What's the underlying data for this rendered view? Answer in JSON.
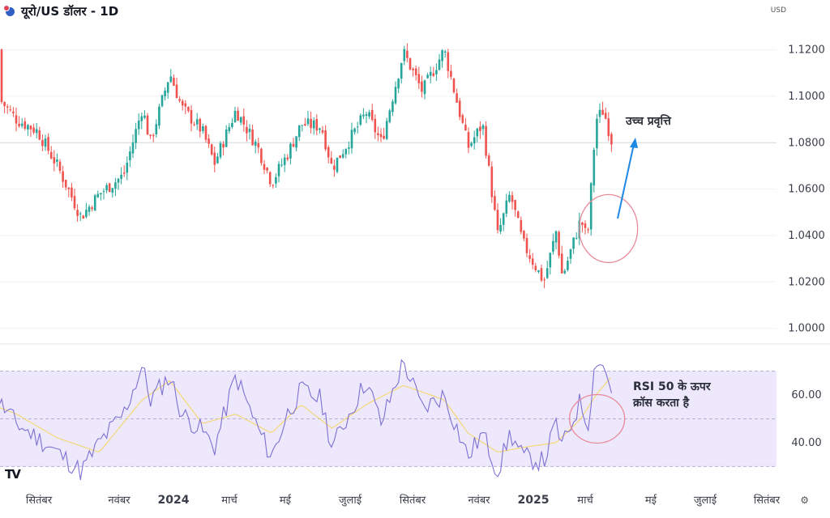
{
  "header": {
    "title": "यूरो/US डॉलर - 1D",
    "currency": "USD",
    "logo": "TV"
  },
  "icons": {
    "symbol": "currency-pair-icon",
    "settings": "settings-icon"
  },
  "colors": {
    "up": "#26a69a",
    "down": "#ef5350",
    "rsi": "#7e70d4",
    "rsi_ma": "#f5d76e",
    "rsi_band": "#ede8fb",
    "circle": "#e88a9a",
    "arrow": "#1e88e5"
  },
  "chart_data": [
    {
      "type": "candlestick",
      "title": "यूरो/US डॉलर - 1D",
      "ylim": [
        0.995,
        1.131
      ],
      "y_ticks": [
        "1.1200",
        "1.1000",
        "1.0800",
        "1.0600",
        "1.0400",
        "1.0200",
        "1.0000"
      ],
      "y_tick_values": [
        1.12,
        1.1,
        1.08,
        1.06,
        1.04,
        1.02,
        1.0
      ],
      "reference_line": 1.08,
      "x_labels": [
        "सितंबर",
        "नवंबर",
        "2024",
        "मार्च",
        "मई",
        "जुलाई",
        "सितंबर",
        "नवंबर",
        "2025",
        "मार्च",
        "मई",
        "जुलाई",
        "सितंबर"
      ],
      "x_labels_bold": [
        false,
        false,
        true,
        false,
        false,
        false,
        false,
        false,
        true,
        false,
        false,
        false,
        false
      ],
      "x_label_dates": [
        "2023-09-01",
        "2023-11-01",
        "2024-01-01",
        "2024-03-01",
        "2024-05-01",
        "2024-07-01",
        "2024-09-01",
        "2024-11-01",
        "2025-01-01",
        "2025-03-01",
        "2025-05-01",
        "2025-07-01",
        "2025-09-01"
      ],
      "close_path": [
        {
          "date": "2023-07-17",
          "close": 1.12
        },
        {
          "date": "2023-07-31",
          "close": 1.1
        },
        {
          "date": "2023-08-15",
          "close": 1.09
        },
        {
          "date": "2023-08-31",
          "close": 1.085
        },
        {
          "date": "2023-09-15",
          "close": 1.07
        },
        {
          "date": "2023-10-03",
          "close": 1.048
        },
        {
          "date": "2023-10-17",
          "close": 1.058
        },
        {
          "date": "2023-11-06",
          "close": 1.066
        },
        {
          "date": "2023-11-27",
          "close": 1.095
        },
        {
          "date": "2023-12-06",
          "close": 1.08
        },
        {
          "date": "2023-12-28",
          "close": 1.11
        },
        {
          "date": "2024-01-10",
          "close": 1.095
        },
        {
          "date": "2024-02-01",
          "close": 1.085
        },
        {
          "date": "2024-02-14",
          "close": 1.071
        },
        {
          "date": "2024-03-08",
          "close": 1.094
        },
        {
          "date": "2024-04-01",
          "close": 1.078
        },
        {
          "date": "2024-04-16",
          "close": 1.063
        },
        {
          "date": "2024-05-03",
          "close": 1.075
        },
        {
          "date": "2024-05-16",
          "close": 1.088
        },
        {
          "date": "2024-06-04",
          "close": 1.087
        },
        {
          "date": "2024-06-14",
          "close": 1.069
        },
        {
          "date": "2024-07-17",
          "close": 1.093
        },
        {
          "date": "2024-08-01",
          "close": 1.08
        },
        {
          "date": "2024-08-23",
          "close": 1.119
        },
        {
          "date": "2024-09-10",
          "close": 1.102
        },
        {
          "date": "2024-09-30",
          "close": 1.12
        },
        {
          "date": "2024-10-22",
          "close": 1.078
        },
        {
          "date": "2024-11-05",
          "close": 1.088
        },
        {
          "date": "2024-11-22",
          "close": 1.04
        },
        {
          "date": "2024-12-06",
          "close": 1.058
        },
        {
          "date": "2024-12-20",
          "close": 1.037
        },
        {
          "date": "2025-01-13",
          "close": 1.02
        },
        {
          "date": "2025-01-27",
          "close": 1.042
        },
        {
          "date": "2025-02-03",
          "close": 1.022
        },
        {
          "date": "2025-02-24",
          "close": 1.047
        },
        {
          "date": "2025-03-03",
          "close": 1.038
        },
        {
          "date": "2025-03-11",
          "close": 1.09
        },
        {
          "date": "2025-03-18",
          "close": 1.094
        },
        {
          "date": "2025-03-26",
          "close": 1.08
        }
      ],
      "annotations": [
        {
          "text": "उच्च प्रवृत्ति",
          "type": "arrow-up"
        },
        {
          "type": "circle",
          "date": "2025-03-03",
          "value": 1.043
        }
      ]
    },
    {
      "type": "line",
      "title": "RSI",
      "ylim": [
        22,
        79
      ],
      "y_ticks": [
        "60.00",
        "40.00"
      ],
      "y_tick_values": [
        60,
        40
      ],
      "band": [
        30,
        70
      ],
      "midline": 50,
      "series": [
        {
          "values": [
            {
              "date": "2023-07-17",
              "rsi": 75
            },
            {
              "date": "2023-07-31",
              "rsi": 58
            },
            {
              "date": "2023-08-15",
              "rsi": 48
            },
            {
              "date": "2023-08-31",
              "rsi": 42
            },
            {
              "date": "2023-09-15",
              "rsi": 36
            },
            {
              "date": "2023-10-03",
              "rsi": 28
            },
            {
              "date": "2023-10-17",
              "rsi": 40
            },
            {
              "date": "2023-11-06",
              "rsi": 52
            },
            {
              "date": "2023-11-27",
              "rsi": 72
            },
            {
              "date": "2023-12-06",
              "rsi": 58
            },
            {
              "date": "2023-12-28",
              "rsi": 68
            },
            {
              "date": "2024-01-10",
              "rsi": 52
            },
            {
              "date": "2024-02-01",
              "rsi": 45
            },
            {
              "date": "2024-02-14",
              "rsi": 38
            },
            {
              "date": "2024-03-08",
              "rsi": 68
            },
            {
              "date": "2024-04-01",
              "rsi": 46
            },
            {
              "date": "2024-04-16",
              "rsi": 34
            },
            {
              "date": "2024-05-03",
              "rsi": 52
            },
            {
              "date": "2024-05-16",
              "rsi": 62
            },
            {
              "date": "2024-06-04",
              "rsi": 58
            },
            {
              "date": "2024-06-14",
              "rsi": 38
            },
            {
              "date": "2024-07-17",
              "rsi": 66
            },
            {
              "date": "2024-08-01",
              "rsi": 48
            },
            {
              "date": "2024-08-23",
              "rsi": 74
            },
            {
              "date": "2024-09-10",
              "rsi": 54
            },
            {
              "date": "2024-09-30",
              "rsi": 60
            },
            {
              "date": "2024-10-22",
              "rsi": 34
            },
            {
              "date": "2024-11-05",
              "rsi": 44
            },
            {
              "date": "2024-11-22",
              "rsi": 28
            },
            {
              "date": "2024-12-06",
              "rsi": 44
            },
            {
              "date": "2024-12-20",
              "rsi": 34
            },
            {
              "date": "2025-01-13",
              "rsi": 32
            },
            {
              "date": "2025-01-27",
              "rsi": 48
            },
            {
              "date": "2025-02-03",
              "rsi": 38
            },
            {
              "date": "2025-02-24",
              "rsi": 58
            },
            {
              "date": "2025-03-03",
              "rsi": 46
            },
            {
              "date": "2025-03-11",
              "rsi": 76
            },
            {
              "date": "2025-03-18",
              "rsi": 72
            },
            {
              "date": "2025-03-26",
              "rsi": 62
            }
          ]
        },
        {
          "values": [
            {
              "date": "2023-07-17",
              "rsi": 58
            },
            {
              "date": "2023-08-15",
              "rsi": 52
            },
            {
              "date": "2023-09-15",
              "rsi": 42
            },
            {
              "date": "2023-10-17",
              "rsi": 36
            },
            {
              "date": "2023-11-27",
              "rsi": 58
            },
            {
              "date": "2023-12-28",
              "rsi": 66
            },
            {
              "date": "2024-02-01",
              "rsi": 48
            },
            {
              "date": "2024-03-08",
              "rsi": 52
            },
            {
              "date": "2024-04-16",
              "rsi": 44
            },
            {
              "date": "2024-05-16",
              "rsi": 56
            },
            {
              "date": "2024-06-14",
              "rsi": 46
            },
            {
              "date": "2024-07-17",
              "rsi": 56
            },
            {
              "date": "2024-08-23",
              "rsi": 64
            },
            {
              "date": "2024-09-30",
              "rsi": 58
            },
            {
              "date": "2024-10-22",
              "rsi": 44
            },
            {
              "date": "2024-11-22",
              "rsi": 36
            },
            {
              "date": "2024-12-20",
              "rsi": 38
            },
            {
              "date": "2025-01-27",
              "rsi": 40
            },
            {
              "date": "2025-02-24",
              "rsi": 50
            },
            {
              "date": "2025-03-11",
              "rsi": 60
            },
            {
              "date": "2025-03-26",
              "rsi": 68
            }
          ]
        }
      ],
      "annotations": [
        {
          "text_lines": [
            "RSI 50 के ऊपर",
            "क्रॉस करता है"
          ]
        },
        {
          "type": "circle",
          "date": "2025-03-03",
          "value": 50
        }
      ]
    }
  ]
}
